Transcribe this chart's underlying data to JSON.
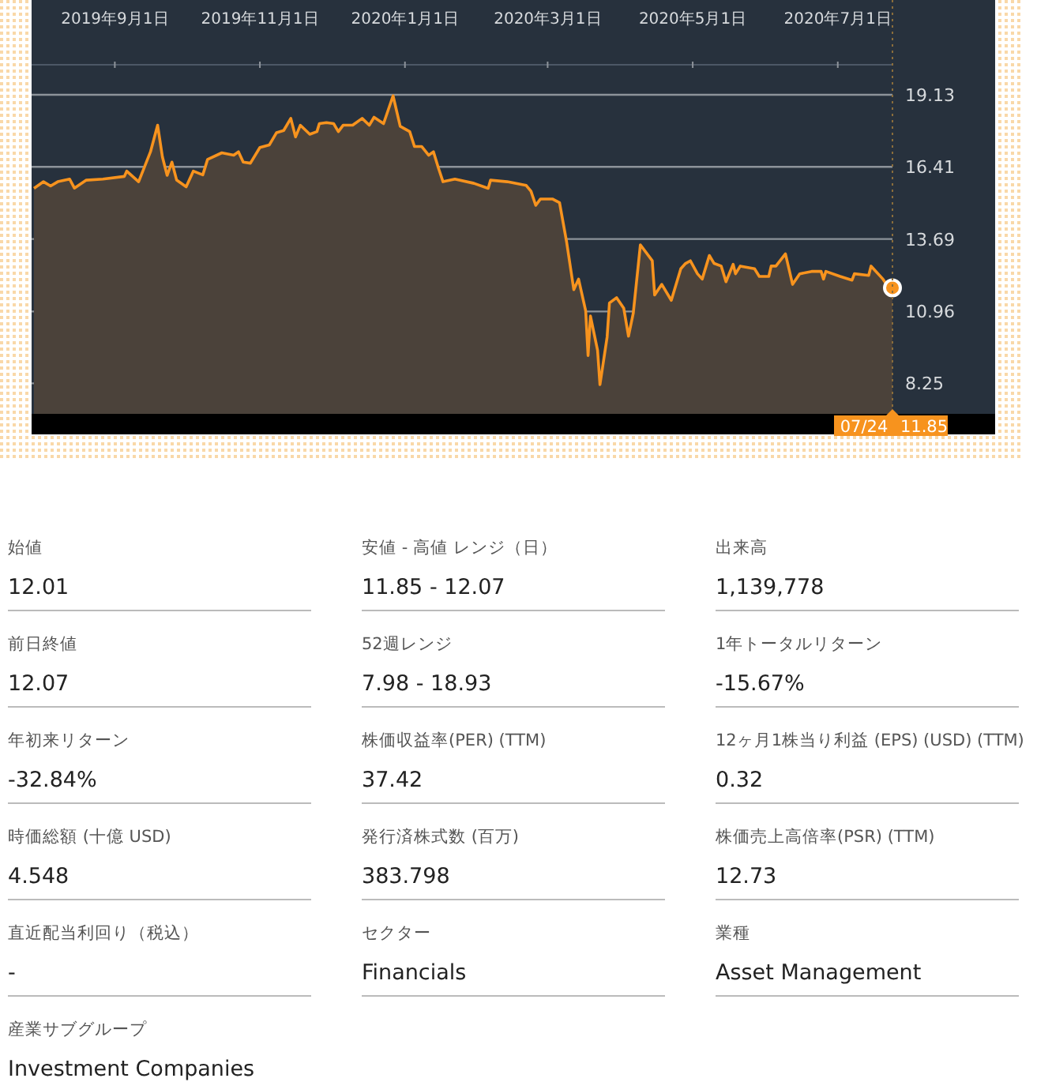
{
  "chart_data": [
    {
      "type": "area",
      "x": [
        "2019-07-29",
        "2019-08-02",
        "2019-08-05",
        "2019-08-08",
        "2019-08-13",
        "2019-08-15",
        "2019-08-20",
        "2019-08-27",
        "2019-09-05",
        "2019-09-06",
        "2019-09-11",
        "2019-09-16",
        "2019-09-19",
        "2019-09-21",
        "2019-09-23",
        "2019-09-25",
        "2019-09-27",
        "2019-10-01",
        "2019-10-04",
        "2019-10-08",
        "2019-10-10",
        "2019-10-16",
        "2019-10-21",
        "2019-10-23",
        "2019-10-25",
        "2019-10-28",
        "2019-11-01",
        "2019-11-05",
        "2019-11-08",
        "2019-11-11",
        "2019-11-14",
        "2019-11-16",
        "2019-11-18",
        "2019-11-22",
        "2019-11-25",
        "2019-11-26",
        "2019-11-29",
        "2019-12-02",
        "2019-12-04",
        "2019-12-06",
        "2019-12-10",
        "2019-12-14",
        "2019-12-17",
        "2019-12-19",
        "2019-12-23",
        "2019-12-27",
        "2019-12-30",
        "2020-01-03",
        "2020-01-05",
        "2020-01-08",
        "2020-01-11",
        "2020-01-13",
        "2020-01-15",
        "2020-01-17",
        "2020-01-22",
        "2020-01-30",
        "2020-02-05",
        "2020-02-06",
        "2020-02-13",
        "2020-02-21",
        "2020-02-23",
        "2020-02-25",
        "2020-02-27",
        "2020-03-03",
        "2020-03-06",
        "2020-03-09",
        "2020-03-12",
        "2020-03-14",
        "2020-03-17",
        "2020-03-18",
        "2020-03-19",
        "2020-03-22",
        "2020-03-23",
        "2020-03-26",
        "2020-03-27",
        "2020-03-30",
        "2020-04-02",
        "2020-04-04",
        "2020-04-06",
        "2020-04-09",
        "2020-04-14",
        "2020-04-15",
        "2020-04-18",
        "2020-04-22",
        "2020-04-26",
        "2020-04-28",
        "2020-04-30",
        "2020-05-03",
        "2020-05-05",
        "2020-05-08",
        "2020-05-10",
        "2020-05-13",
        "2020-05-15",
        "2020-05-18",
        "2020-05-19",
        "2020-05-21",
        "2020-05-27",
        "2020-05-29",
        "2020-06-02",
        "2020-06-03",
        "2020-06-05",
        "2020-06-09",
        "2020-06-12",
        "2020-06-15",
        "2020-06-20",
        "2020-06-24",
        "2020-06-25",
        "2020-06-26",
        "2020-07-02",
        "2020-07-07",
        "2020-07-08",
        "2020-07-14",
        "2020-07-15",
        "2020-07-20",
        "2020-07-23",
        "2020-07-24"
      ],
      "series": [
        {
          "type": "area",
          "color": "#f7931e",
          "values": [
            15.6,
            15.85,
            15.69,
            15.85,
            15.95,
            15.61,
            15.91,
            15.95,
            16.05,
            16.25,
            15.85,
            16.98,
            17.98,
            16.79,
            16.09,
            16.59,
            15.91,
            15.66,
            16.25,
            16.11,
            16.69,
            16.94,
            16.85,
            16.98,
            16.59,
            16.55,
            17.14,
            17.24,
            17.7,
            17.78,
            18.24,
            17.54,
            17.98,
            17.64,
            17.74,
            18.04,
            18.08,
            18.04,
            17.74,
            17.98,
            17.98,
            18.24,
            17.98,
            18.28,
            18.04,
            19.09,
            17.94,
            17.74,
            17.18,
            17.18,
            16.85,
            16.98,
            16.39,
            15.85,
            15.95,
            15.79,
            15.6,
            15.91,
            15.85,
            15.71,
            15.49,
            14.96,
            15.2,
            15.2,
            15.06,
            13.57,
            11.78,
            12.18,
            10.98,
            9.3,
            10.79,
            9.49,
            8.2,
            9.99,
            11.28,
            11.48,
            11.08,
            10.03,
            10.89,
            13.47,
            12.87,
            11.58,
            11.98,
            11.38,
            12.57,
            12.77,
            12.87,
            12.38,
            12.18,
            13.07,
            12.77,
            12.67,
            12.08,
            12.74,
            12.38,
            12.67,
            12.57,
            12.28,
            12.28,
            12.67,
            12.67,
            13.13,
            11.98,
            12.38,
            12.47,
            12.47,
            12.18,
            12.47,
            12.28,
            12.14,
            12.38,
            12.32,
            12.67,
            12.18,
            11.78,
            11.85
          ]
        },
        {
          "type": "scatter",
          "color": "#f7931e",
          "marker": "circle",
          "x": [
            "2020-07-24"
          ],
          "values": [
            11.85
          ]
        }
      ],
      "xlim": [
        "2019-07-28",
        "2020-07-24"
      ],
      "xticks": [
        {
          "value": "2019-09-01",
          "label": "2019年9月1日"
        },
        {
          "value": "2019-11-01",
          "label": "2019年11月1日"
        },
        {
          "value": "2020-01-01",
          "label": "2020年1月1日"
        },
        {
          "value": "2020-03-01",
          "label": "2020年3月1日"
        },
        {
          "value": "2020-05-01",
          "label": "2020年5月1日"
        },
        {
          "value": "2020-07-01",
          "label": "2020年7月1日"
        }
      ],
      "ylim": [
        7.1,
        20.2
      ],
      "yticks": [
        8.25,
        10.96,
        13.69,
        16.41,
        19.13
      ],
      "grid": "y",
      "ref_lines": [
        {
          "axis": "x",
          "value": "2020-07-24",
          "line_style": "dotted",
          "color": "#8a6d3b"
        }
      ],
      "annotations": [
        "07/24",
        "11.85"
      ]
    },
    {
      "type": "other",
      "annotations": [
        "始値",
        "12.01",
        "安値 - 高値 レンジ（日）",
        "11.85 - 12.07",
        "出来高",
        "1,139,778",
        "前日終値",
        "12.07",
        "52週レンジ",
        "7.98 - 18.93",
        "1年トータルリターン",
        "-15.67%",
        "年初来リターン",
        "-32.84%",
        "株価収益率(PER) (TTM)",
        "37.42",
        "12ヶ月1株当り利益 (EPS) (USD) (TTM)",
        "0.32",
        "時価総額 (十億 USD)",
        "4.548",
        "発行済株式数 (百万)",
        "383.798",
        "株価売上高倍率(PSR) (TTM)",
        "12.73",
        "直近配当利回り（税込）",
        "-",
        "セクター",
        "Financials",
        "業種",
        "Asset Management",
        "産業サブグループ",
        "Investment Companies"
      ]
    }
  ]
}
